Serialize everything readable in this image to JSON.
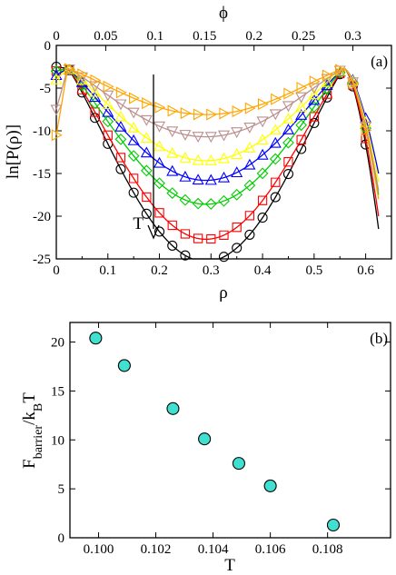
{
  "chart_data": [
    {
      "id": "a",
      "type": "line",
      "panel_label": "(a)",
      "xlabel": "ρ",
      "ylabel": "ln[P(ρ)]",
      "top_xlabel": "ϕ",
      "annotation": "T",
      "xlim": [
        0,
        0.65
      ],
      "ylim": [
        -25,
        0
      ],
      "top_xlim": [
        0,
        0.339
      ],
      "xticks": [
        "0",
        "0.1",
        "0.2",
        "0.3",
        "0.4",
        "0.5",
        "0.6"
      ],
      "xtick_values": [
        0,
        0.1,
        0.2,
        0.3,
        0.4,
        0.5,
        0.6
      ],
      "yticks": [
        "0",
        "-5",
        "-10",
        "-15",
        "-20",
        "-25"
      ],
      "ytick_values": [
        0,
        -5,
        -10,
        -15,
        -20,
        -25
      ],
      "top_xticks": [
        "0",
        "0.05",
        "0.1",
        "0.15",
        "0.2",
        "0.25",
        "0.3"
      ],
      "top_xtick_values": [
        0,
        0.05,
        0.1,
        0.15,
        0.2,
        0.25,
        0.3
      ],
      "series": [
        {
          "marker": "circle",
          "color": "#000000",
          "depth": 22.6,
          "left_edge": -2.5,
          "right_edge": -21.5
        },
        {
          "marker": "square",
          "color": "#ff0000",
          "depth": 20.0,
          "left_edge": -3.0,
          "right_edge": -20.0
        },
        {
          "marker": "diamond",
          "color": "#00cc00",
          "depth": 15.9,
          "left_edge": -3.0,
          "right_edge": -17.5
        },
        {
          "marker": "triangle-up",
          "color": "#0000ff",
          "depth": 13.1,
          "left_edge": -3.5,
          "right_edge": -15.0
        },
        {
          "marker": "triangle-up",
          "color": "#ffff00",
          "depth": 10.8,
          "left_edge": -4.0,
          "right_edge": -16.0
        },
        {
          "marker": "triangle-down",
          "color": "#bc8f8f",
          "depth": 8.0,
          "left_edge": -7.5,
          "right_edge": -17.0
        },
        {
          "marker": "triangle-right",
          "color": "#ffa500",
          "depth": 5.4,
          "left_edge": -10.5,
          "right_edge": -18.0
        }
      ]
    },
    {
      "id": "b",
      "type": "scatter",
      "panel_label": "(b)",
      "xlabel": "T",
      "ylabel": "F_barrier / k_B T",
      "xlim": [
        0.099,
        0.1102
      ],
      "ylim": [
        0,
        22
      ],
      "xticks": [
        "0.100",
        "0.102",
        "0.104",
        "0.106",
        "0.108"
      ],
      "xtick_values": [
        0.1,
        0.102,
        0.104,
        0.106,
        0.108
      ],
      "yticks": [
        "0",
        "5",
        "10",
        "15",
        "20"
      ],
      "ytick_values": [
        0,
        5,
        10,
        15,
        20
      ],
      "marker_color": "#40e0d0",
      "x": [
        0.0999,
        0.1009,
        0.1026,
        0.1037,
        0.1049,
        0.106,
        0.1082
      ],
      "y": [
        20.4,
        17.6,
        13.2,
        10.1,
        7.6,
        5.3,
        1.3
      ]
    }
  ]
}
